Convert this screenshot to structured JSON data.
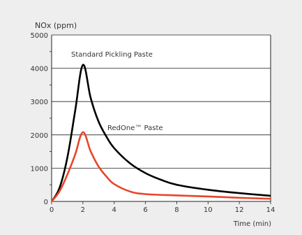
{
  "chart_data": {
    "type": "line",
    "ylabel": "NOx (ppm)",
    "xlabel": "Time (min)",
    "xlim": [
      0,
      14
    ],
    "ylim": [
      0,
      5000
    ],
    "x_ticks": [
      0,
      2,
      4,
      6,
      8,
      10,
      12,
      14
    ],
    "y_ticks": [
      0,
      1000,
      2000,
      3000,
      4000,
      5000
    ],
    "grid": "horizontal",
    "colors": {
      "plot_bg": "#ffffff",
      "page_bg": "#eeeeee",
      "grid": "#222222"
    },
    "series": [
      {
        "name": "Standard Pickling Paste",
        "color": "#000000",
        "points": [
          [
            0,
            0
          ],
          [
            0.5,
            400
          ],
          [
            1,
            1300
          ],
          [
            1.5,
            2700
          ],
          [
            2,
            4100
          ],
          [
            2.5,
            3100
          ],
          [
            3,
            2400
          ],
          [
            3.5,
            1950
          ],
          [
            4,
            1600
          ],
          [
            5,
            1150
          ],
          [
            6,
            850
          ],
          [
            7,
            650
          ],
          [
            8,
            500
          ],
          [
            10,
            350
          ],
          [
            12,
            250
          ],
          [
            14,
            170
          ]
        ]
      },
      {
        "name": "RedOne™ Paste",
        "color": "#e8452a",
        "points": [
          [
            0,
            0
          ],
          [
            0.5,
            300
          ],
          [
            1,
            800
          ],
          [
            1.5,
            1400
          ],
          [
            2,
            2080
          ],
          [
            2.5,
            1500
          ],
          [
            3,
            1050
          ],
          [
            3.5,
            750
          ],
          [
            4,
            520
          ],
          [
            5,
            300
          ],
          [
            6,
            220
          ],
          [
            8,
            180
          ],
          [
            10,
            150
          ],
          [
            12,
            110
          ],
          [
            14,
            80
          ]
        ]
      }
    ],
    "annotations": [
      {
        "text": "Standard Pickling Paste",
        "x": 2.0,
        "y": 4400,
        "anchor": "start"
      },
      {
        "text": "RedOne™ Paste",
        "x": 3.5,
        "y": 2180,
        "anchor": "start"
      }
    ]
  }
}
